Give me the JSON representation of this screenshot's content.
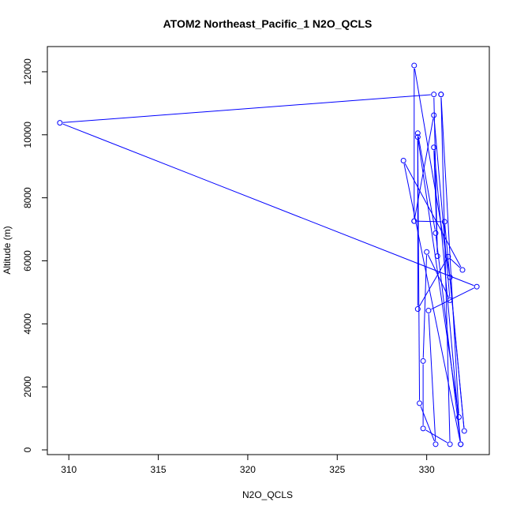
{
  "chart_data": {
    "type": "line",
    "title": "ATOM2 Northeast_Pacific_1 N2O_QCLS",
    "xlabel": "N2O_QCLS",
    "ylabel": "Altitude (m)",
    "xlim": [
      308.8,
      333.5
    ],
    "ylim": [
      -150,
      12800
    ],
    "xticks": [
      310,
      315,
      320,
      325,
      330
    ],
    "yticks": [
      0,
      2000,
      4000,
      6000,
      8000,
      10000,
      12000
    ],
    "grid": false,
    "legend": "none",
    "color": "#0000ff",
    "markers": "open-circle",
    "series": [
      {
        "x": [
          331.9,
          330.5,
          329.5,
          329.5,
          331.2,
          332.0,
          328.7,
          331.9,
          330.4,
          330.6,
          330.4,
          309.5,
          332.8,
          330.1,
          330.5,
          329.6,
          329.5,
          331.8,
          330.8,
          330.8,
          331.3,
          329.8,
          329.8,
          330.0,
          331.3,
          330.4,
          329.3,
          329.3,
          331.3,
          332.1,
          331.0,
          329.3
        ],
        "y": [
          180,
          6880,
          10050,
          4470,
          6130,
          5710,
          9180,
          180,
          9600,
          6150,
          11280,
          10380,
          5180,
          4420,
          180,
          1480,
          9930,
          1040,
          11280,
          11280,
          180,
          680,
          2820,
          6280,
          4750,
          10620,
          7260,
          12200,
          5480,
          600,
          7240,
          7260
        ]
      }
    ]
  }
}
